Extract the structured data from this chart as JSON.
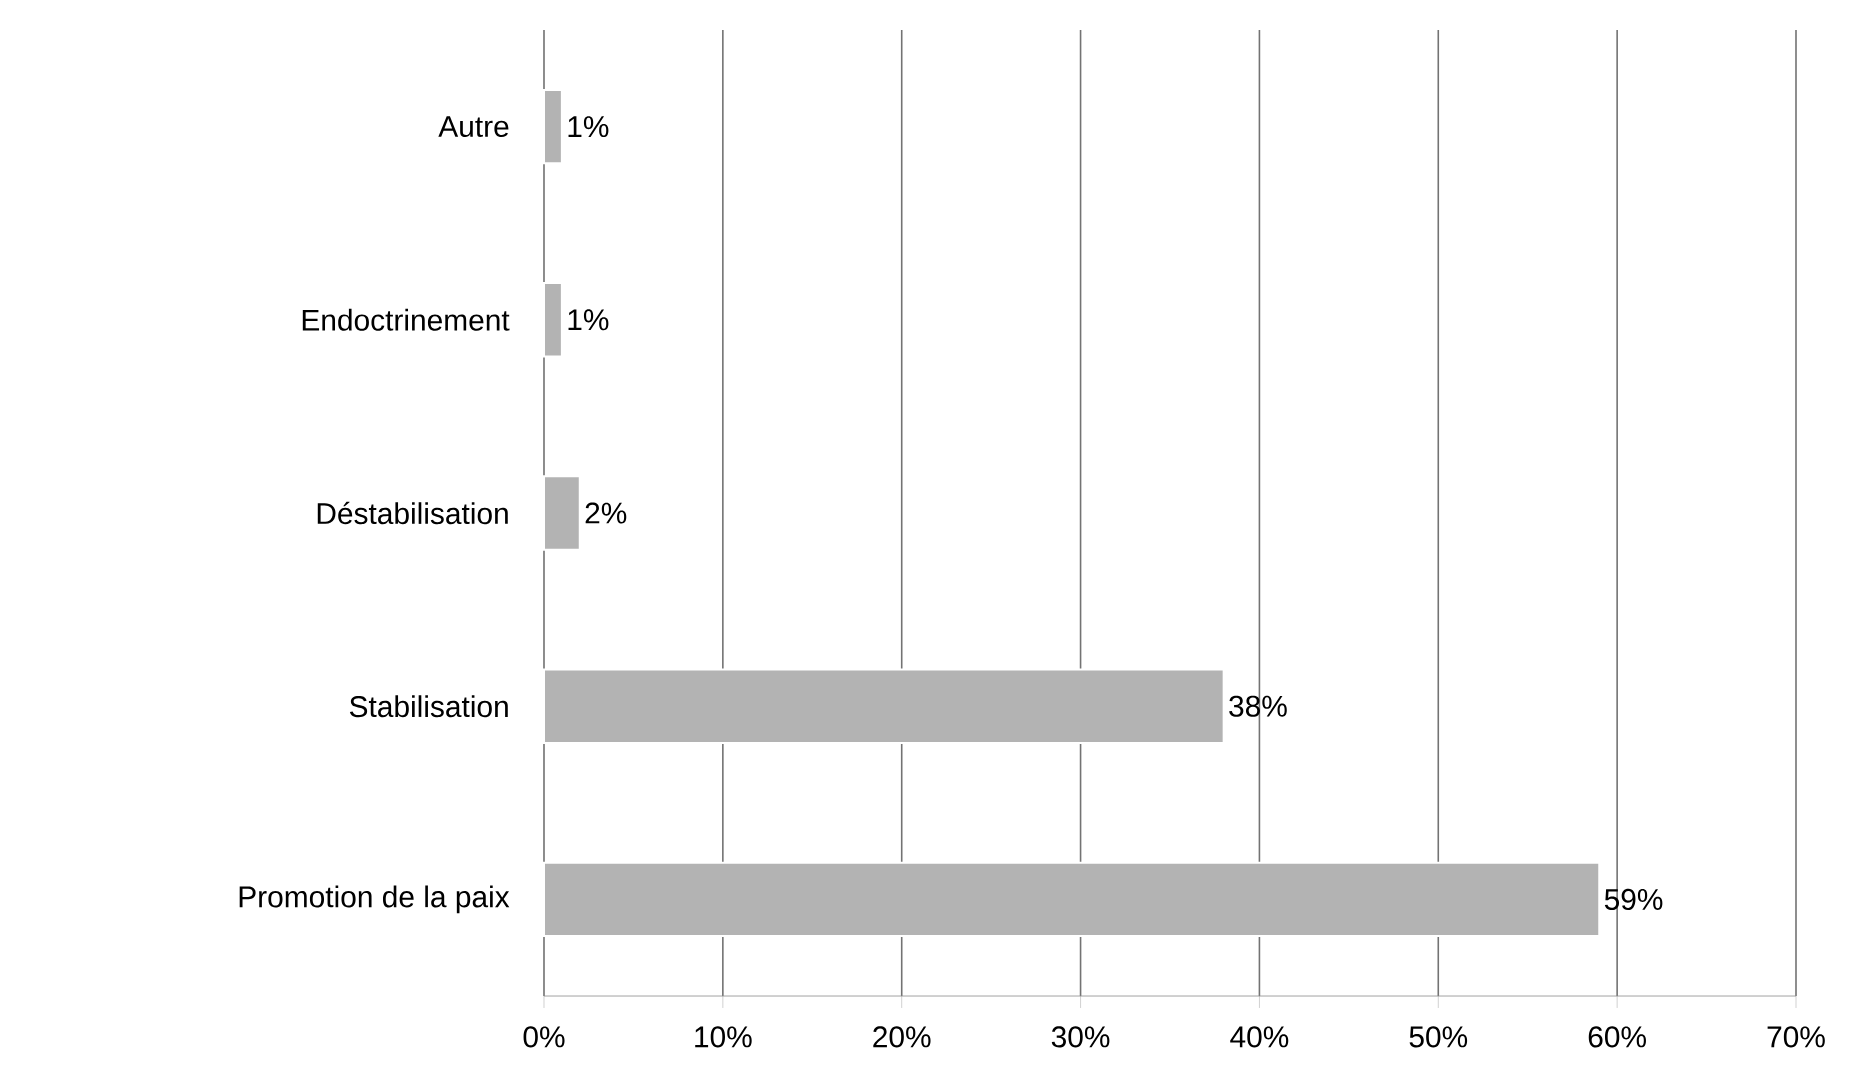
{
  "chart_data": {
    "type": "bar",
    "orientation": "horizontal",
    "categories": [
      "Autre",
      "Endoctrinement",
      "Déstabilisation",
      "Stabilisation",
      "Promotion de la paix"
    ],
    "values": [
      1,
      1,
      2,
      38,
      59
    ],
    "value_labels": [
      "1%",
      "1%",
      "2%",
      "38%",
      "59%"
    ],
    "color": "#b3b3b3",
    "xlim": [
      0,
      70
    ],
    "xticks": [
      {
        "value": 0,
        "label": "0%"
      },
      {
        "value": 10,
        "label": "10%"
      },
      {
        "value": 20,
        "label": "20%"
      },
      {
        "value": 30,
        "label": "30%"
      },
      {
        "value": 40,
        "label": "40%"
      },
      {
        "value": 50,
        "label": "50%"
      },
      {
        "value": 60,
        "label": "60%"
      },
      {
        "value": 70,
        "label": "70%"
      }
    ],
    "grid": "x"
  }
}
